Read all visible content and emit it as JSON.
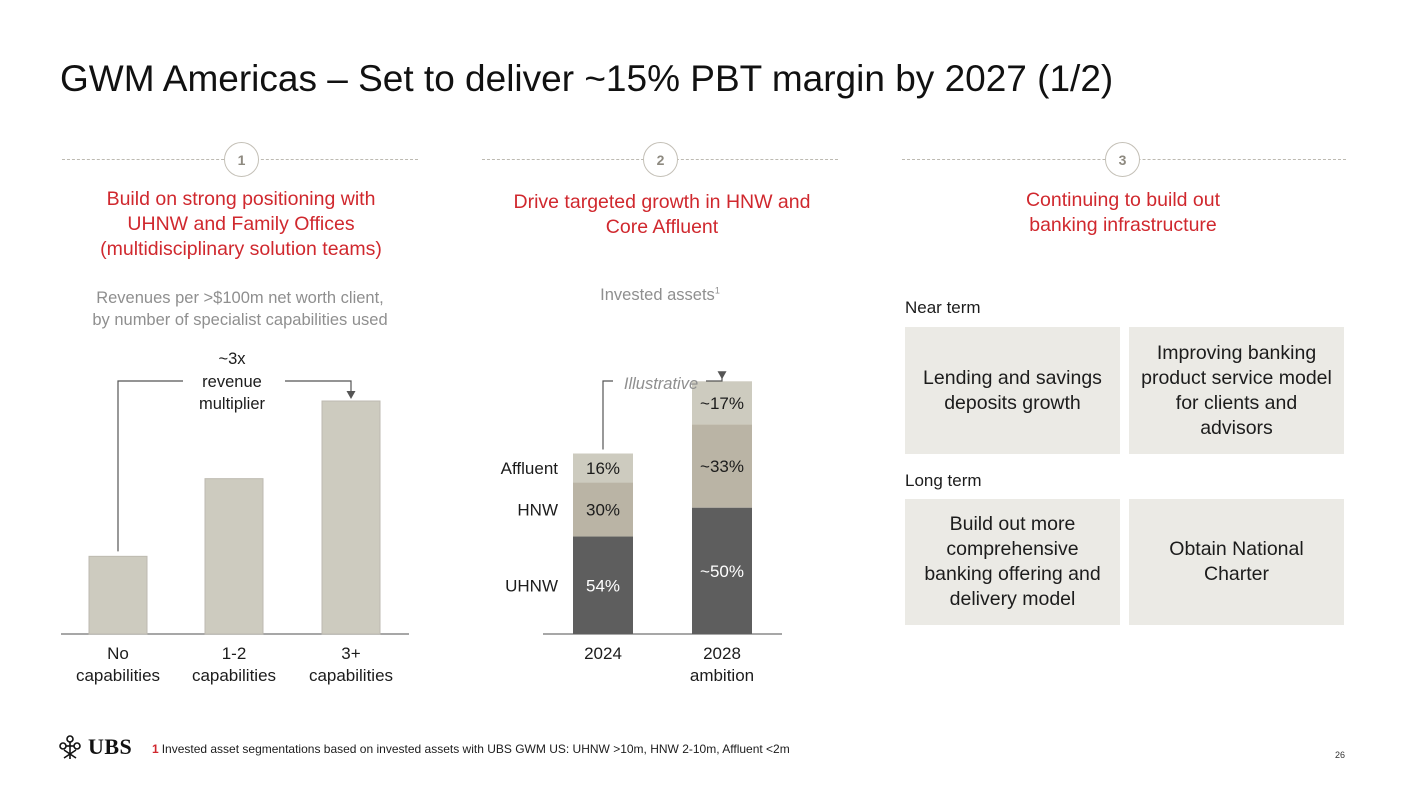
{
  "title": "GWM Americas – Set to deliver ~15% PBT margin by 2027 (1/2)",
  "pillars": [
    {
      "number": "1",
      "heading": "Build on strong positioning with UHNW and Family Offices (multidisciplinary solution teams)"
    },
    {
      "number": "2",
      "heading": "Drive targeted growth in HNW and Core Affluent"
    },
    {
      "number": "3",
      "heading": "Continuing to build out banking infrastructure"
    }
  ],
  "colors": {
    "accent_red": "#d0282e",
    "bar_light": "#cdcbbf",
    "segment_dark": "#5e5e5e",
    "segment_mid": "#bab4a5",
    "segment_light": "#cdcbbf",
    "box_bg": "#ebeae5"
  },
  "chart_data": [
    {
      "type": "bar",
      "subtitle_line1": "Revenues per >$100m net worth client,",
      "subtitle_line2": "by number of specialist capabilities used",
      "categories": [
        {
          "line1": "No",
          "line2": "capabilities"
        },
        {
          "line1": "1-2",
          "line2": "capabilities"
        },
        {
          "line1": "3+",
          "line2": "capabilities"
        }
      ],
      "values": [
        1,
        2.0,
        3.0
      ],
      "annotation": {
        "line1": "~3x",
        "line2": "revenue",
        "line3": "multiplier"
      }
    },
    {
      "type": "bar",
      "stacked": true,
      "subtitle": "Invested assets",
      "subtitle_footnote": "1",
      "annotation": "Illustrative",
      "categories": [
        {
          "line1": "2024",
          "line2": ""
        },
        {
          "line1": "2028",
          "line2": "ambition"
        }
      ],
      "series": [
        {
          "name": "UHNW",
          "values": [
            54,
            50
          ],
          "labels": [
            "54%",
            "~50%"
          ]
        },
        {
          "name": "HNW",
          "values": [
            30,
            33
          ],
          "labels": [
            "30%",
            "~33%"
          ]
        },
        {
          "name": "Affluent",
          "values": [
            16,
            17
          ],
          "labels": [
            "16%",
            "~17%"
          ]
        }
      ],
      "totals_relative": [
        1.0,
        1.4
      ]
    }
  ],
  "infrastructure": {
    "near_term_label": "Near term",
    "near_term": [
      "Lending and savings deposits growth",
      "Improving banking product service model for clients and advisors"
    ],
    "long_term_label": "Long term",
    "long_term": [
      "Build out more comprehensive banking offering and delivery model",
      "Obtain National Charter"
    ]
  },
  "footer": {
    "logo_text": "UBS",
    "footnote_number": "1",
    "footnote_text": "Invested asset segmentations based on invested assets with UBS GWM US: UHNW >10m, HNW 2-10m, Affluent <2m",
    "page_number": "26"
  }
}
